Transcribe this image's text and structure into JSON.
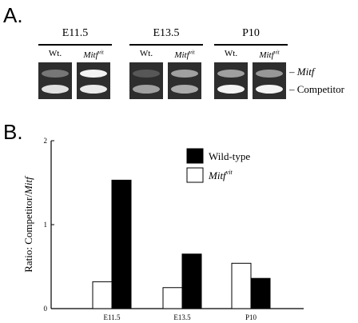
{
  "panel_a": {
    "label": "A.",
    "groups": [
      {
        "title": "E11.5",
        "lanes": [
          {
            "label": "Wt.",
            "mitf_band": 0.35,
            "competitor_band": 0.85
          },
          {
            "label": "Mitf",
            "sup": "vit",
            "mitf_band": 0.95,
            "competitor_band": 0.9
          }
        ]
      },
      {
        "title": "E13.5",
        "lanes": [
          {
            "label": "Wt.",
            "mitf_band": 0.2,
            "competitor_band": 0.55
          },
          {
            "label": "Mitf",
            "sup": "vit",
            "mitf_band": 0.55,
            "competitor_band": 0.6
          }
        ]
      },
      {
        "title": "P10",
        "lanes": [
          {
            "label": "Wt.",
            "mitf_band": 0.55,
            "competitor_band": 0.95
          },
          {
            "label": "Mitf",
            "sup": "vit",
            "mitf_band": 0.5,
            "competitor_band": 0.95
          }
        ]
      }
    ],
    "band_labels": {
      "mitf": "Mitf",
      "competitor": "Competitor"
    }
  },
  "panel_b": {
    "label": "B."
  },
  "chart_data": {
    "type": "bar",
    "categories": [
      "E11.5",
      "E13.5",
      "P10"
    ],
    "series": [
      {
        "name": "Mitf",
        "name_sup": "vit",
        "color": "#ffffff",
        "values": [
          0.32,
          0.25,
          0.54
        ]
      },
      {
        "name": "Wild-type",
        "color": "#000000",
        "values": [
          1.53,
          0.65,
          0.36
        ]
      }
    ],
    "ylabel": "Ratio: Competitor/",
    "ylabel_italic": "Mitf",
    "ylim": [
      0,
      2
    ],
    "yticks": [
      0,
      1,
      2
    ],
    "legend_position": "top-right",
    "grid": false
  }
}
